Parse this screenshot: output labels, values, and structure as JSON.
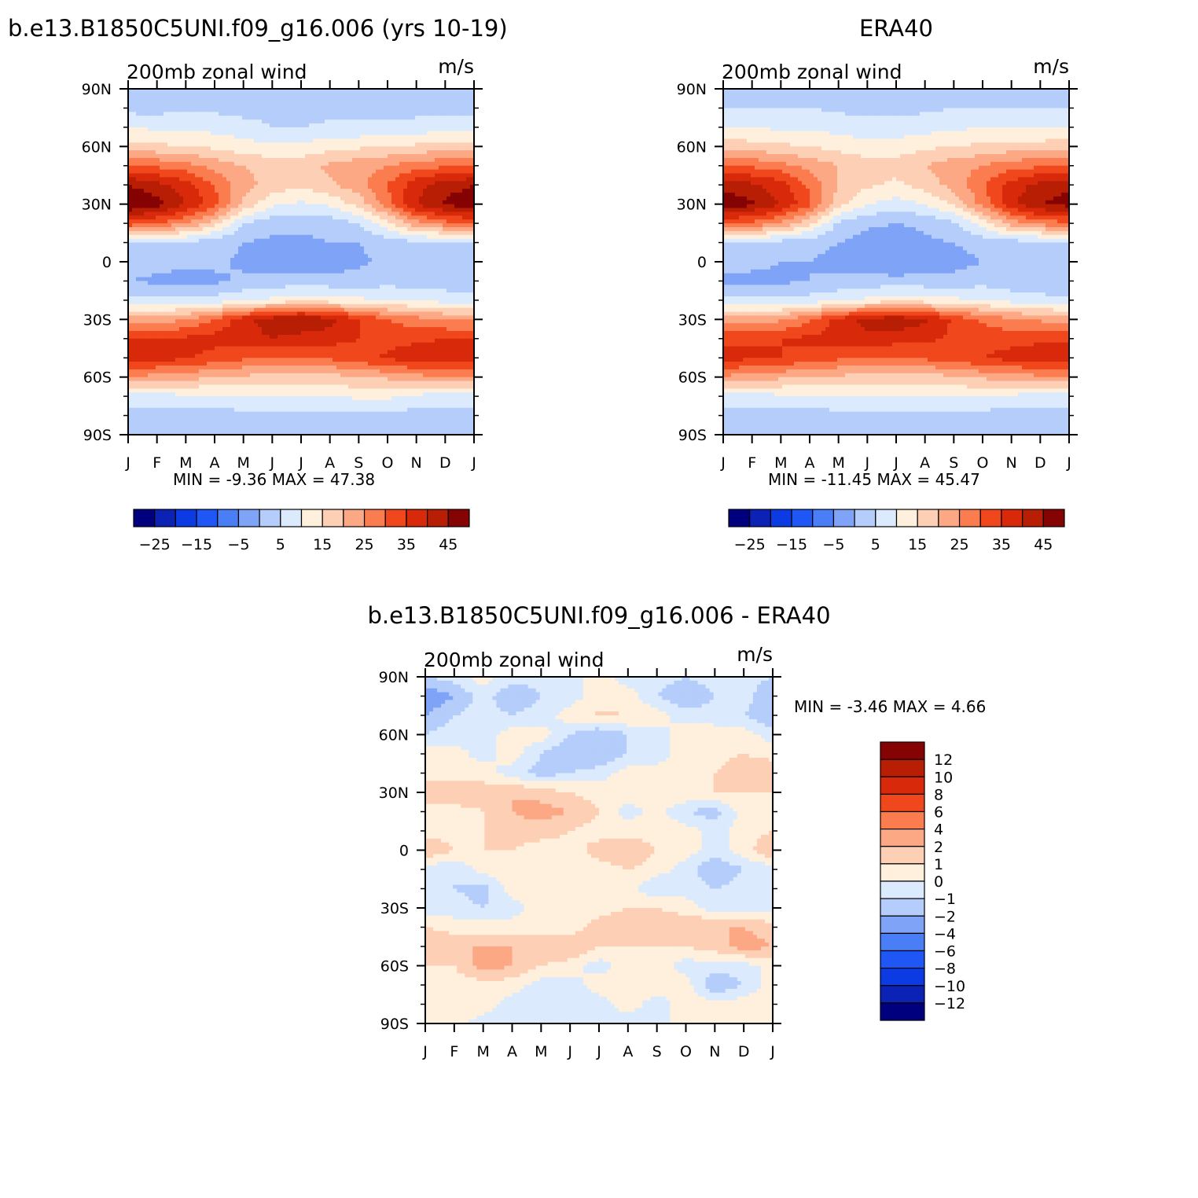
{
  "page": {
    "left_title": "b.e13.B1850C5UNI.f09_g16.006 (yrs 10-19)",
    "right_title": "ERA40",
    "bottom_title": "b.e13.B1850C5UNI.f09_g16.006 - ERA40"
  },
  "chart_data": [
    {
      "type": "heatmap",
      "title": "b.e13.B1850C5UNI.f09_g16.006 (yrs 10-19)",
      "subtitle_left": "200mb zonal wind",
      "subtitle_right": "m/s",
      "x_tick_labels": [
        "J",
        "F",
        "M",
        "A",
        "M",
        "J",
        "J",
        "A",
        "S",
        "O",
        "N",
        "D",
        "J"
      ],
      "y_tick_labels": [
        "90N",
        "60N",
        "30N",
        "0",
        "30S",
        "60S",
        "90S"
      ],
      "y_values": [
        90,
        60,
        30,
        0,
        -30,
        -60,
        -90
      ],
      "ylim": [
        -90,
        90
      ],
      "min_label": "MIN =",
      "min_value": "-9.36",
      "max_label": "MAX =",
      "max_value": "47.38",
      "levels": [
        -30,
        -25,
        -20,
        -15,
        -10,
        -5,
        0,
        5,
        10,
        15,
        20,
        25,
        30,
        35,
        40,
        45
      ],
      "colorbar_tick_labels": [
        "-25",
        "-15",
        "-5",
        "5",
        "15",
        "25",
        "35",
        "45"
      ],
      "colorbar_colors": [
        "#00007f",
        "#0b22b4",
        "#0d3be3",
        "#1e57f5",
        "#4a7ef7",
        "#7ea3f7",
        "#b4cdfa",
        "#dbeafc",
        "#fff0dd",
        "#fdcfb4",
        "#fca885",
        "#fb7c4f",
        "#f0471d",
        "#d82a0b",
        "#b71e04",
        "#860303"
      ],
      "row_lats": [
        90,
        80,
        70,
        60,
        50,
        40,
        30,
        20,
        10,
        0,
        -10,
        -20,
        -30,
        -40,
        -50,
        -60,
        -70,
        -80,
        -90
      ],
      "month_values": [
        [
          -3,
          -3,
          -2.5,
          -2.5,
          -3,
          -3,
          -3,
          -3,
          -3,
          -3,
          -3,
          -3,
          -3
        ],
        [
          -2,
          -2,
          -1,
          -1,
          -2,
          -2,
          -2,
          -2,
          -1.5,
          -1.5,
          -2,
          -2,
          -2
        ],
        [
          5,
          4,
          4,
          3,
          2,
          0,
          0,
          1,
          1,
          1,
          2,
          3,
          4
        ],
        [
          12,
          11,
          10,
          9,
          7,
          6,
          6,
          8,
          9,
          10,
          11,
          12,
          12
        ],
        [
          25,
          24,
          22,
          18,
          15,
          13,
          13,
          16,
          18,
          20,
          23,
          24,
          25
        ],
        [
          40,
          37,
          32,
          25,
          17,
          13,
          11,
          14,
          18,
          25,
          33,
          38,
          40
        ],
        [
          46,
          42,
          35,
          27,
          14,
          6,
          4,
          6,
          12,
          23,
          35,
          41,
          43
        ],
        [
          28,
          25,
          20,
          12,
          0,
          -3,
          -4,
          -3,
          0,
          8,
          18,
          23,
          26
        ],
        [
          0,
          0,
          -1,
          -3,
          -5,
          -6,
          -6,
          -5,
          -5,
          -3,
          -1,
          -2,
          -1
        ],
        [
          -3,
          -3,
          -4,
          -4,
          -6,
          -8,
          -8,
          -8,
          -6,
          -4,
          -3,
          -3,
          -3
        ],
        [
          -5,
          -6,
          -7,
          -6,
          -4,
          -3,
          -3,
          -3,
          -3,
          -2,
          -2,
          -3,
          -3
        ],
        [
          2,
          1,
          1,
          2,
          4,
          6,
          8,
          7,
          6,
          5,
          4,
          3,
          2
        ],
        [
          18,
          17,
          20,
          25,
          33,
          38,
          40,
          37,
          30,
          25,
          22,
          20,
          19
        ],
        [
          30,
          30,
          31,
          32,
          33,
          35,
          33,
          32,
          30,
          28,
          29,
          30,
          30
        ],
        [
          33,
          32,
          31,
          28,
          26,
          25,
          25,
          26,
          28,
          31,
          33,
          34,
          34
        ],
        [
          20,
          18,
          17,
          15,
          14,
          13,
          13,
          13,
          15,
          16,
          18,
          20,
          20
        ],
        [
          2,
          3,
          4,
          4,
          5,
          5,
          5,
          5,
          6,
          6,
          4,
          2,
          2
        ],
        [
          -2,
          -2,
          -2,
          -2,
          -2,
          -2,
          -2,
          -2,
          -2,
          -2,
          -2,
          -2,
          -2
        ],
        [
          -3,
          -3,
          -3,
          -3,
          -3,
          -3,
          -3,
          -3,
          -3,
          -3,
          -3,
          -3,
          -3
        ]
      ]
    },
    {
      "type": "heatmap",
      "title": "ERA40",
      "subtitle_left": "200mb zonal wind",
      "subtitle_right": "m/s",
      "x_tick_labels": [
        "J",
        "F",
        "M",
        "A",
        "M",
        "J",
        "J",
        "A",
        "S",
        "O",
        "N",
        "D",
        "J"
      ],
      "y_tick_labels": [
        "90N",
        "60N",
        "30N",
        "0",
        "30S",
        "60S",
        "90S"
      ],
      "y_values": [
        90,
        60,
        30,
        0,
        -30,
        -60,
        -90
      ],
      "ylim": [
        -90,
        90
      ],
      "min_label": "MIN =",
      "min_value": "-11.45",
      "max_label": "MAX =",
      "max_value": "45.47",
      "levels": [
        -30,
        -25,
        -20,
        -15,
        -10,
        -5,
        0,
        5,
        10,
        15,
        20,
        25,
        30,
        35,
        40,
        45
      ],
      "colorbar_tick_labels": [
        "-25",
        "-15",
        "-5",
        "5",
        "15",
        "25",
        "35",
        "45"
      ],
      "colorbar_colors": [
        "#00007f",
        "#0b22b4",
        "#0d3be3",
        "#1e57f5",
        "#4a7ef7",
        "#7ea3f7",
        "#b4cdfa",
        "#dbeafc",
        "#fff0dd",
        "#fdcfb4",
        "#fca885",
        "#fb7c4f",
        "#f0471d",
        "#d82a0b",
        "#b71e04",
        "#860303"
      ],
      "row_lats": [
        90,
        80,
        70,
        60,
        50,
        40,
        30,
        20,
        10,
        0,
        -10,
        -20,
        -30,
        -40,
        -50,
        -60,
        -70,
        -80,
        -90
      ],
      "month_values": [
        [
          -3,
          -3,
          -3,
          -3,
          -3,
          -3,
          -3,
          -3,
          -3,
          -3,
          -3,
          -3,
          -3
        ],
        [
          0,
          0,
          0,
          0,
          -1,
          -2,
          -2,
          -1,
          0,
          0,
          0,
          0,
          0
        ],
        [
          5,
          5,
          4,
          4,
          3,
          2,
          2,
          3,
          4,
          5,
          5,
          5,
          5
        ],
        [
          13,
          12,
          11,
          10,
          8,
          7,
          7,
          9,
          10,
          11,
          12,
          12,
          13
        ],
        [
          25,
          24,
          22,
          18,
          15,
          12,
          12,
          15,
          18,
          20,
          23,
          24,
          25
        ],
        [
          38,
          36,
          32,
          24,
          15,
          11,
          9,
          12,
          17,
          24,
          32,
          37,
          39
        ],
        [
          44,
          41,
          35,
          26,
          12,
          5,
          3,
          5,
          11,
          22,
          34,
          40,
          42
        ],
        [
          26,
          24,
          19,
          11,
          -1,
          -4,
          -5,
          -4,
          -1,
          7,
          17,
          22,
          24
        ],
        [
          -1,
          -1,
          -2,
          -3,
          -5,
          -7,
          -8,
          -6,
          -5,
          -3,
          -2,
          -2,
          -1
        ],
        [
          -4,
          -4,
          -5,
          -5,
          -7,
          -9,
          -10,
          -9,
          -7,
          -5,
          -4,
          -4,
          -4
        ],
        [
          -6,
          -6,
          -6,
          -5,
          -4,
          -3,
          -3,
          -3,
          -3,
          -2,
          -3,
          -4,
          -5
        ],
        [
          1,
          1,
          1,
          2,
          4,
          6,
          8,
          7,
          6,
          5,
          3,
          2,
          1
        ],
        [
          17,
          17,
          19,
          24,
          32,
          37,
          39,
          36,
          29,
          24,
          21,
          19,
          18
        ],
        [
          29,
          29,
          30,
          31,
          32,
          34,
          32,
          31,
          29,
          28,
          28,
          29,
          29
        ],
        [
          32,
          31,
          30,
          28,
          26,
          25,
          25,
          26,
          28,
          30,
          32,
          33,
          33
        ],
        [
          19,
          18,
          16,
          15,
          14,
          13,
          13,
          13,
          14,
          16,
          17,
          19,
          19
        ],
        [
          2,
          3,
          4,
          4,
          5,
          5,
          5,
          5,
          5,
          5,
          4,
          2,
          2
        ],
        [
          -2,
          -2,
          -2,
          -2,
          -2,
          -2,
          -2,
          -2,
          -2,
          -2,
          -2,
          -2,
          -2
        ],
        [
          -3,
          -3,
          -3,
          -3,
          -3,
          -3,
          -3,
          -3,
          -3,
          -3,
          -3,
          -3,
          -3
        ]
      ]
    },
    {
      "type": "heatmap",
      "title": "b.e13.B1850C5UNI.f09_g16.006 - ERA40",
      "subtitle_left": "200mb zonal wind",
      "subtitle_right": "m/s",
      "x_tick_labels": [
        "J",
        "F",
        "M",
        "A",
        "M",
        "J",
        "J",
        "A",
        "S",
        "O",
        "N",
        "D",
        "J"
      ],
      "y_tick_labels": [
        "90N",
        "60N",
        "30N",
        "0",
        "30S",
        "60S",
        "90S"
      ],
      "y_values": [
        90,
        60,
        30,
        0,
        -30,
        -60,
        -90
      ],
      "ylim": [
        -90,
        90
      ],
      "min_label": "MIN =",
      "min_value": "-3.46",
      "max_label": "MAX =",
      "max_value": "4.66",
      "levels": [
        -12,
        -10,
        -8,
        -6,
        -4,
        -2,
        -1,
        0,
        1,
        2,
        4,
        6,
        8,
        10,
        12
      ],
      "colorbar_tick_labels": [
        "12",
        "10",
        "8",
        "6",
        "4",
        "2",
        "1",
        "0",
        "-1",
        "-2",
        "-4",
        "-6",
        "-8",
        "-10",
        "-12"
      ],
      "colorbar_colors": [
        "#00007f",
        "#0b22b4",
        "#0d3be3",
        "#1e57f5",
        "#4a7ef7",
        "#7ea3f7",
        "#b4cdfa",
        "#dbeafc",
        "#fff0dd",
        "#fdcfb4",
        "#fca885",
        "#fb7c4f",
        "#f0471d",
        "#d82a0b",
        "#b71e04",
        "#860303"
      ],
      "row_lats": [
        90,
        80,
        70,
        60,
        50,
        40,
        30,
        20,
        10,
        0,
        -10,
        -20,
        -30,
        -40,
        -50,
        -60,
        -70,
        -80,
        -90
      ],
      "month_values": [
        [
          -1,
          -0.5,
          0.5,
          -0.5,
          -0.5,
          -0.5,
          0.5,
          -0.5,
          -0.5,
          -1,
          -0.5,
          -0.5,
          -1
        ],
        [
          -3,
          -2,
          -0.5,
          -2,
          -1,
          -0.5,
          0.5,
          0.5,
          -1,
          -2,
          -1,
          -0.5,
          -2
        ],
        [
          -2,
          -1,
          -0.5,
          -1,
          -0.5,
          0.5,
          1.2,
          1,
          0.5,
          -0.5,
          -0.5,
          -1,
          -2
        ],
        [
          -1,
          -0.5,
          -0.5,
          0.5,
          0.5,
          -1,
          -2,
          -1,
          -0.5,
          0.5,
          0.5,
          0.5,
          -0.5
        ],
        [
          0.5,
          0.5,
          -0.5,
          0.5,
          -1,
          -2,
          -2,
          -1,
          -0.5,
          0.5,
          0.5,
          1,
          0.5
        ],
        [
          0.5,
          0.5,
          0.5,
          -0.5,
          -1.5,
          -1,
          -0.5,
          0.5,
          0.5,
          0.5,
          1,
          2,
          2
        ],
        [
          2,
          2,
          1.5,
          2,
          1.5,
          1,
          0.5,
          0.5,
          0.5,
          1,
          1,
          1,
          1
        ],
        [
          0.5,
          0.5,
          1,
          2,
          2.5,
          2,
          1,
          -0.5,
          0.5,
          -1,
          -1.5,
          0.5,
          1
        ],
        [
          0.5,
          0.5,
          1,
          1.5,
          1.5,
          1,
          0.5,
          0.5,
          0.5,
          0.5,
          -0.5,
          0.5,
          1
        ],
        [
          2,
          1,
          1,
          1,
          0.5,
          0.5,
          1.5,
          2,
          1,
          0.5,
          -0.5,
          0.5,
          2
        ],
        [
          -0.5,
          -1,
          0.5,
          0.5,
          0.5,
          0.5,
          0.5,
          1,
          0.5,
          -0.5,
          -2,
          -1,
          -0.5
        ],
        [
          -0.5,
          -1,
          -1.5,
          0.5,
          1,
          1,
          1,
          0.5,
          -1,
          -0.5,
          -1,
          -0.5,
          -0.5
        ],
        [
          -0.5,
          -0.5,
          -1,
          -0.5,
          0.5,
          0.5,
          0.5,
          1,
          1,
          0.5,
          -0.5,
          -0.5,
          -0.5
        ],
        [
          1,
          0.5,
          0.5,
          0.5,
          0.5,
          0.5,
          1.5,
          2,
          1.5,
          2,
          2,
          2,
          1.5
        ],
        [
          2,
          2,
          2,
          2,
          2,
          2,
          1,
          1,
          1,
          1,
          1.5,
          2.5,
          2
        ],
        [
          1,
          1,
          2.5,
          2,
          1,
          0.5,
          -0.5,
          0.5,
          0.5,
          -0.5,
          -0.5,
          -0.5,
          0.5
        ],
        [
          0.5,
          0.5,
          0.5,
          0.5,
          -0.5,
          -0.5,
          0.5,
          0.5,
          0.5,
          0.5,
          -2,
          -1,
          0.5
        ],
        [
          0.5,
          0.5,
          0.5,
          -0.5,
          -1,
          -1,
          -0.5,
          0.5,
          -0.5,
          0.5,
          0.5,
          0.5,
          1
        ],
        [
          0.5,
          0.5,
          -0.5,
          -0.5,
          -0.5,
          -0.5,
          -0.5,
          -0.5,
          -0.5,
          0.5,
          0.5,
          0.5,
          0.5
        ]
      ]
    }
  ]
}
